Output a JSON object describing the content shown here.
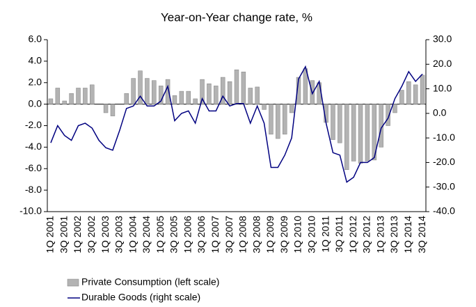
{
  "chart_data": {
    "type": "bar_line",
    "title": "Year-on-Year change rate, %",
    "categories": [
      "1Q 2001",
      null,
      "3Q 2001",
      null,
      "1Q 2002",
      null,
      "3Q 2002",
      null,
      "1Q 2003",
      null,
      "3Q 2003",
      null,
      "1Q 2004",
      null,
      "3Q 2004",
      null,
      "1Q 2005",
      null,
      "3Q 2005",
      null,
      "1Q 2006",
      null,
      "3Q 2006",
      null,
      "1Q 2007",
      null,
      "3Q 2007",
      null,
      "1Q 2008",
      null,
      "3Q 2008",
      null,
      "1Q 2009",
      null,
      "3Q 2009",
      null,
      "1Q 2010",
      null,
      "3Q 2010",
      null,
      "1Q 2011",
      null,
      "3Q 2011",
      null,
      "1Q 2012",
      null,
      "3Q 2012",
      null,
      "1Q 2013",
      null,
      "3Q 2013",
      null,
      "1Q 2014",
      null,
      "3Q 2014"
    ],
    "series": [
      {
        "name": "Private Consumption (left scale)",
        "type": "bar",
        "color": "#b3b3b3",
        "values": [
          0.5,
          1.5,
          0.3,
          1.0,
          1.5,
          1.5,
          1.8,
          0.0,
          -0.8,
          -1.1,
          0.0,
          1.0,
          2.4,
          3.1,
          2.4,
          2.2,
          1.7,
          2.3,
          0.8,
          1.2,
          1.2,
          0.5,
          2.3,
          1.9,
          1.7,
          2.5,
          2.1,
          3.2,
          3.0,
          1.5,
          1.6,
          -0.5,
          -2.8,
          -3.2,
          -2.8,
          -0.8,
          2.5,
          3.3,
          2.2,
          2.0,
          -1.7,
          -3.3,
          -3.6,
          -6.1,
          -5.3,
          -5.5,
          -5.3,
          -5.2,
          -4.0,
          -2.0,
          -0.8,
          1.3,
          2.1,
          1.8,
          2.7
        ]
      },
      {
        "name": "Durable Goods (right scale)",
        "type": "line",
        "color": "#000080",
        "axis": "y2",
        "values": [
          -12,
          -5,
          -9,
          -11,
          -5,
          -4,
          -6,
          -11,
          -14,
          -15,
          -7,
          2,
          3,
          7,
          3,
          3,
          5,
          11,
          -3,
          0,
          1,
          -4,
          6,
          1,
          1,
          7,
          3,
          4,
          4,
          -4,
          3,
          -4,
          -22,
          -22,
          -17,
          -10,
          14,
          19,
          8,
          13,
          -4,
          -16,
          -17,
          -28,
          -26,
          -20,
          -20,
          -18,
          -6,
          -2,
          6,
          11,
          17,
          13,
          16
        ]
      }
    ],
    "ylim": [
      -10,
      6
    ],
    "yticks": [
      {
        "value": -10,
        "label": "-10.0"
      },
      {
        "value": -8,
        "label": "-8.0"
      },
      {
        "value": -6,
        "label": "-6.0"
      },
      {
        "value": -4,
        "label": "-4.0"
      },
      {
        "value": -2,
        "label": "-2.0"
      },
      {
        "value": 0,
        "label": "0.0"
      },
      {
        "value": 2,
        "label": "2.0"
      },
      {
        "value": 4,
        "label": "4.0"
      },
      {
        "value": 6,
        "label": "6.0"
      }
    ],
    "y2lim": [
      -40,
      30
    ],
    "y2ticks": [
      {
        "value": -40,
        "label": "-40.0"
      },
      {
        "value": -30,
        "label": "-30.0"
      },
      {
        "value": -20,
        "label": "-20.0"
      },
      {
        "value": -10,
        "label": "-10.0"
      },
      {
        "value": 0,
        "label": "0.0"
      },
      {
        "value": 10,
        "label": "10.0"
      },
      {
        "value": 20,
        "label": "20.0"
      },
      {
        "value": 30,
        "label": "30.0"
      }
    ]
  }
}
